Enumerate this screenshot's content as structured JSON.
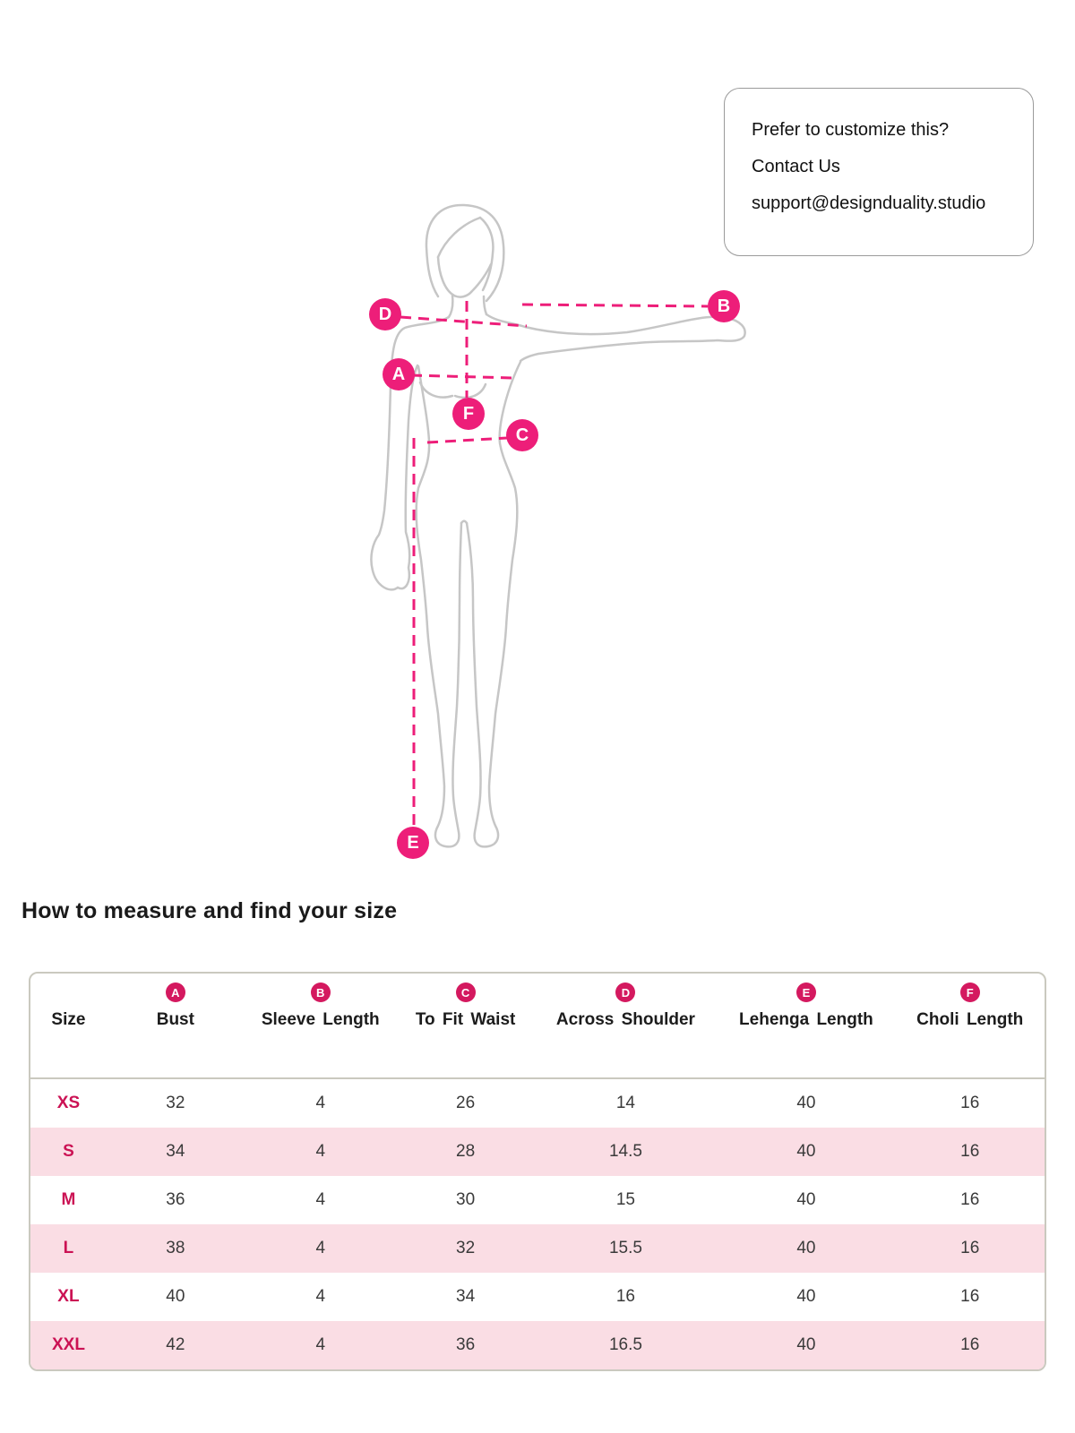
{
  "callout": {
    "line1": "Prefer to customize this?",
    "line2": "Contact Us",
    "line3": "support@designduality.studio"
  },
  "figure": {
    "marker_letters": {
      "a": "A",
      "b": "B",
      "c": "C",
      "d": "D",
      "e": "E",
      "f": "F"
    }
  },
  "section_title": "How to measure and find your size",
  "size_table": {
    "columns": [
      {
        "badge": "",
        "label": "Size"
      },
      {
        "badge": "A",
        "label": "Bust"
      },
      {
        "badge": "B",
        "label": "Sleeve Length"
      },
      {
        "badge": "C",
        "label": "To Fit Waist"
      },
      {
        "badge": "D",
        "label": "Across Shoulder"
      },
      {
        "badge": "E",
        "label": "Lehenga Length"
      },
      {
        "badge": "F",
        "label": "Choli Length"
      }
    ],
    "rows": [
      {
        "size": "XS",
        "values": [
          "32",
          "4",
          "26",
          "14",
          "40",
          "16"
        ]
      },
      {
        "size": "S",
        "values": [
          "34",
          "4",
          "28",
          "14.5",
          "40",
          "16"
        ]
      },
      {
        "size": "M",
        "values": [
          "36",
          "4",
          "30",
          "15",
          "40",
          "16"
        ]
      },
      {
        "size": "L",
        "values": [
          "38",
          "4",
          "32",
          "15.5",
          "40",
          "16"
        ]
      },
      {
        "size": "XL",
        "values": [
          "40",
          "4",
          "34",
          "16",
          "40",
          "16"
        ]
      },
      {
        "size": "XXL",
        "values": [
          "42",
          "4",
          "36",
          "16.5",
          "40",
          "16"
        ]
      }
    ]
  },
  "colors": {
    "accent_pink": "#ED1E79",
    "table_badge_crimson": "#D4195F",
    "size_label_crimson": "#CB1254",
    "row_alt_pink": "#FADDE4",
    "figure_outline_gray": "#C6C6C6",
    "table_border": "#CAC9BF"
  }
}
